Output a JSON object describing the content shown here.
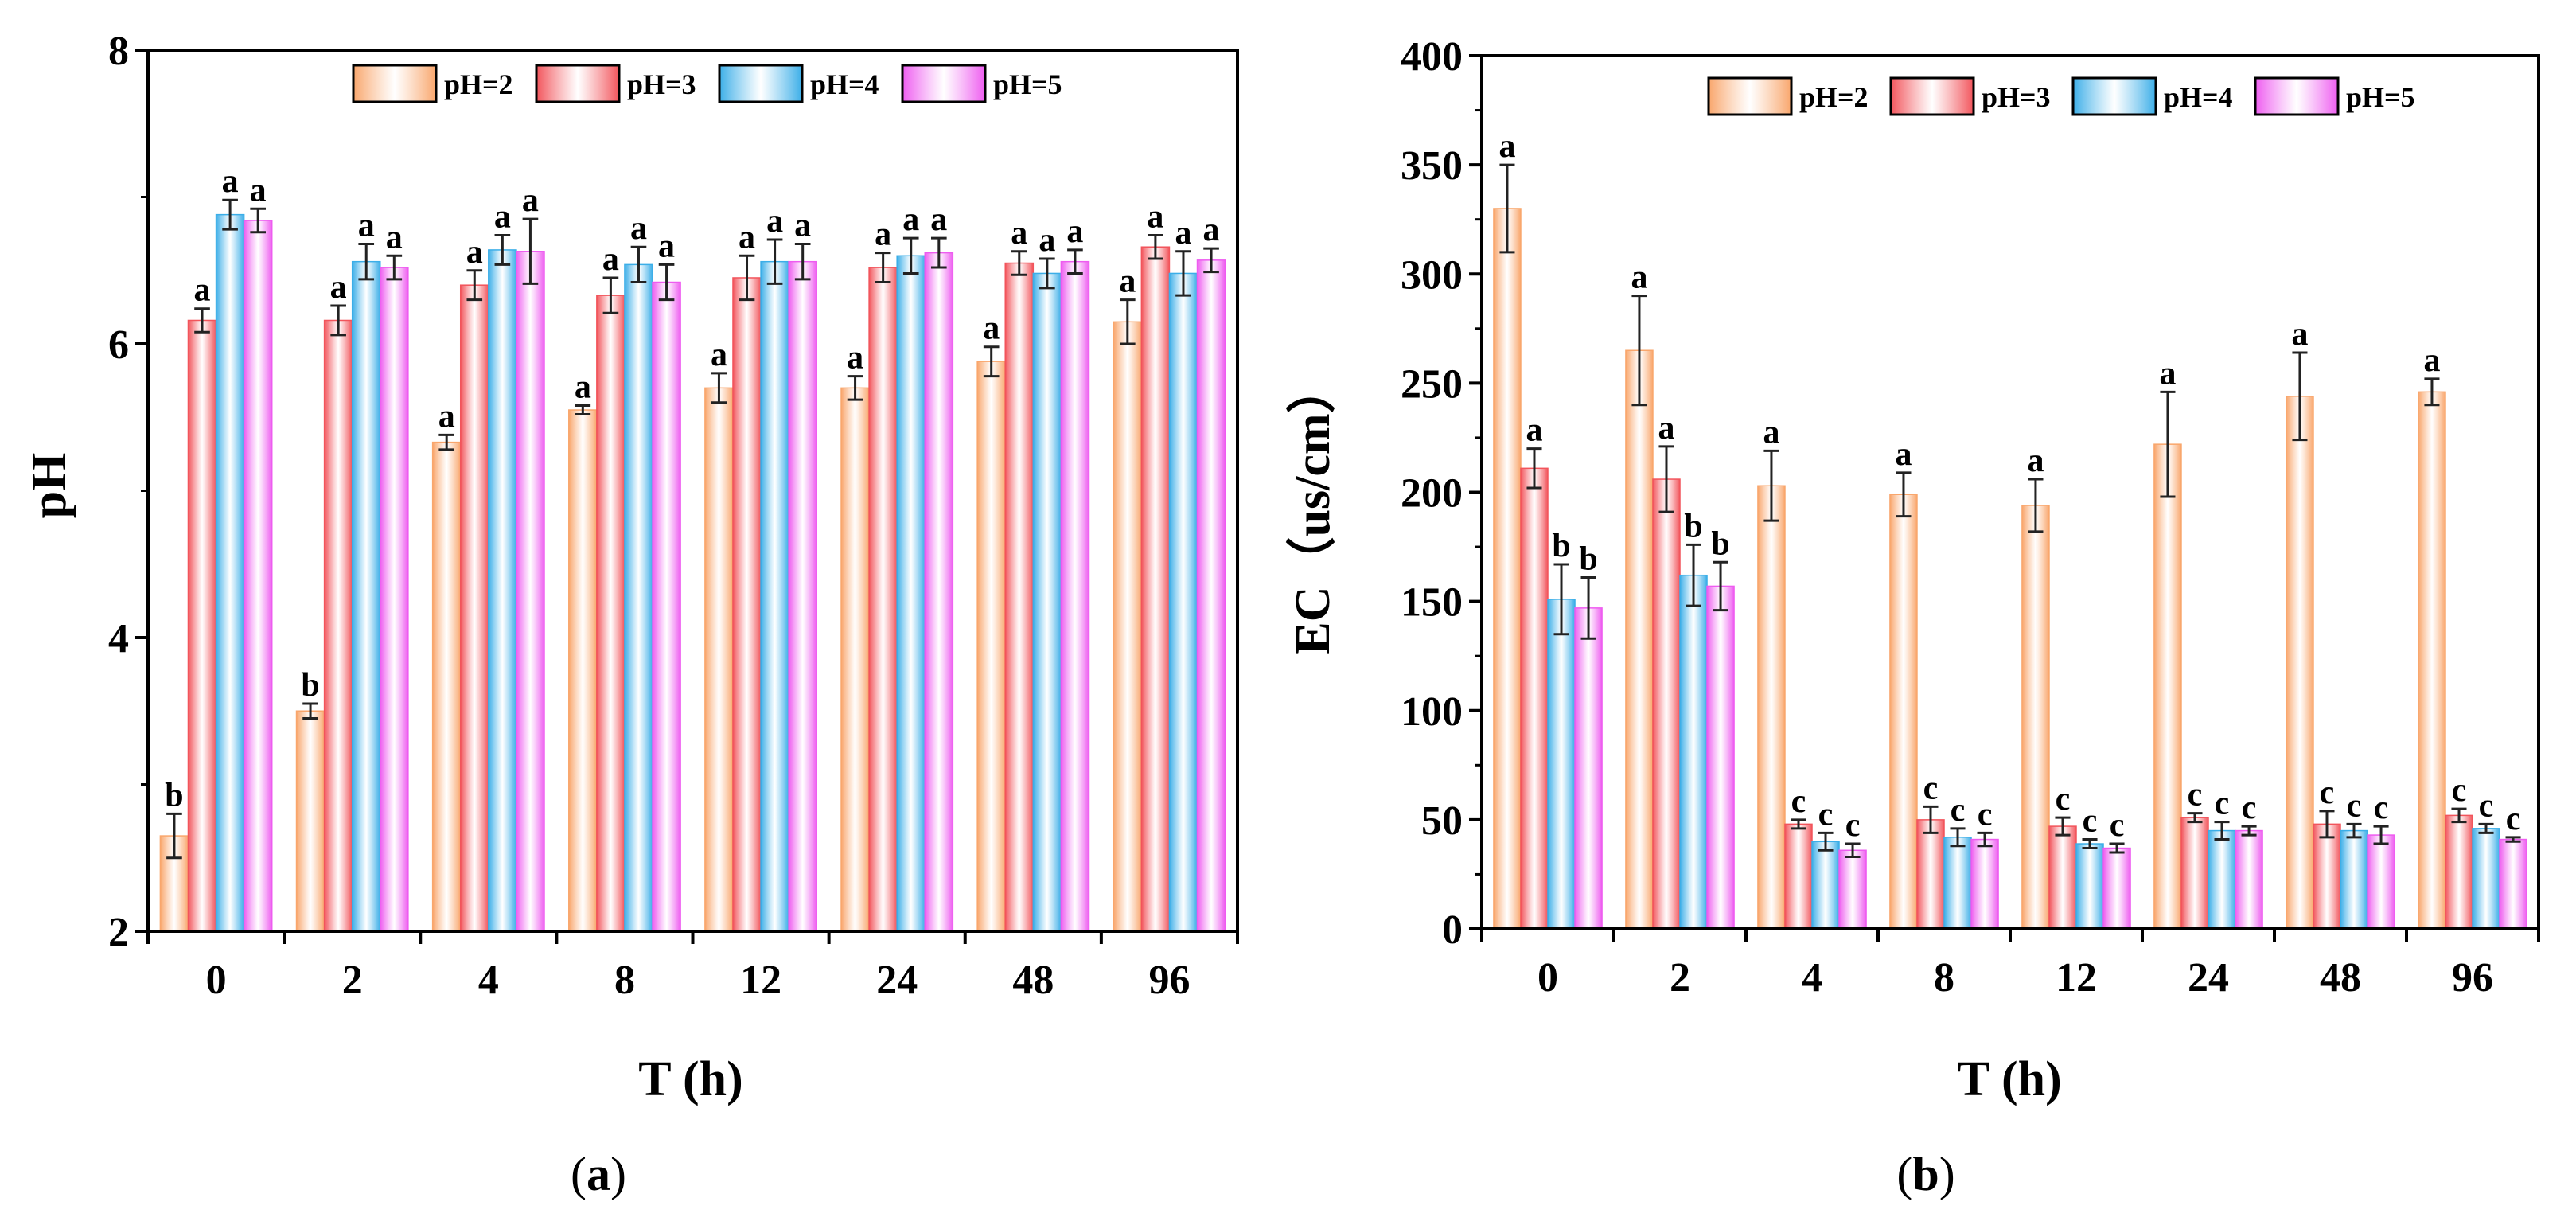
{
  "colors": {
    "pH=2": "#F9A66C",
    "pH=3": "#F2545B",
    "pH=4": "#3BAEE8",
    "pH=5": "#EE5CF0",
    "axis": "#000000",
    "errorbar": "#222222"
  },
  "chart_data": [
    {
      "panel": "(a)",
      "panel_letter": "a",
      "type": "bar",
      "xlabel": "T (h)",
      "ylabel": "pH",
      "ylim": [
        2,
        8
      ],
      "yticks": [
        2,
        4,
        6,
        8
      ],
      "legend_position": "top-right",
      "categories": [
        "0",
        "2",
        "4",
        "8",
        "12",
        "24",
        "48",
        "96"
      ],
      "series": [
        {
          "name": "pH=2",
          "values": [
            2.65,
            3.5,
            5.33,
            5.55,
            5.7,
            5.7,
            5.88,
            6.15
          ],
          "errors": [
            0.15,
            0.05,
            0.05,
            0.03,
            0.1,
            0.08,
            0.1,
            0.15
          ],
          "labels": [
            "b",
            "b",
            "a",
            "a",
            "a",
            "a",
            "a",
            "a"
          ]
        },
        {
          "name": "pH=3",
          "values": [
            6.16,
            6.16,
            6.4,
            6.33,
            6.45,
            6.52,
            6.55,
            6.66
          ],
          "errors": [
            0.08,
            0.1,
            0.1,
            0.12,
            0.15,
            0.1,
            0.08,
            0.08
          ],
          "labels": [
            "a",
            "a",
            "a",
            "a",
            "a",
            "a",
            "a",
            "a"
          ]
        },
        {
          "name": "pH=4",
          "values": [
            6.88,
            6.56,
            6.64,
            6.54,
            6.56,
            6.6,
            6.48,
            6.48
          ],
          "errors": [
            0.1,
            0.12,
            0.1,
            0.12,
            0.15,
            0.12,
            0.1,
            0.15
          ],
          "labels": [
            "a",
            "a",
            "a",
            "a",
            "a",
            "a",
            "a",
            "a"
          ]
        },
        {
          "name": "pH=5",
          "values": [
            6.84,
            6.52,
            6.63,
            6.42,
            6.56,
            6.62,
            6.56,
            6.57
          ],
          "errors": [
            0.08,
            0.08,
            0.22,
            0.12,
            0.12,
            0.1,
            0.08,
            0.08
          ],
          "labels": [
            "a",
            "a",
            "a",
            "a",
            "a",
            "a",
            "a",
            "a"
          ]
        }
      ]
    },
    {
      "panel": "(b)",
      "panel_letter": "b",
      "type": "bar",
      "xlabel": "T (h)",
      "ylabel": "EC（us/cm）",
      "ylim": [
        0,
        400
      ],
      "yticks": [
        0,
        50,
        100,
        150,
        200,
        250,
        300,
        350,
        400
      ],
      "legend_position": "top-right",
      "categories": [
        "0",
        "2",
        "4",
        "8",
        "12",
        "24",
        "48",
        "96"
      ],
      "series": [
        {
          "name": "pH=2",
          "values": [
            330,
            265,
            203,
            199,
            194,
            222,
            244,
            246
          ],
          "errors": [
            20,
            25,
            16,
            10,
            12,
            24,
            20,
            6
          ],
          "labels": [
            "a",
            "a",
            "a",
            "a",
            "a",
            "a",
            "a",
            "a"
          ]
        },
        {
          "name": "pH=3",
          "values": [
            211,
            206,
            48,
            50,
            47,
            51,
            48,
            52
          ],
          "errors": [
            9,
            15,
            2,
            6,
            4,
            2,
            6,
            3
          ],
          "labels": [
            "a",
            "a",
            "c",
            "c",
            "c",
            "c",
            "c",
            "c"
          ]
        },
        {
          "name": "pH=4",
          "values": [
            151,
            162,
            40,
            42,
            39,
            45,
            45,
            46
          ],
          "errors": [
            16,
            14,
            4,
            4,
            2,
            4,
            3,
            2
          ],
          "labels": [
            "b",
            "b",
            "c",
            "c",
            "c",
            "c",
            "c",
            "c"
          ]
        },
        {
          "name": "pH=5",
          "values": [
            147,
            157,
            36,
            41,
            37,
            45,
            43,
            41
          ],
          "errors": [
            14,
            11,
            3,
            3,
            2,
            2,
            4,
            1
          ],
          "labels": [
            "b",
            "b",
            "c",
            "c",
            "c",
            "c",
            "c",
            "c"
          ]
        }
      ]
    }
  ]
}
